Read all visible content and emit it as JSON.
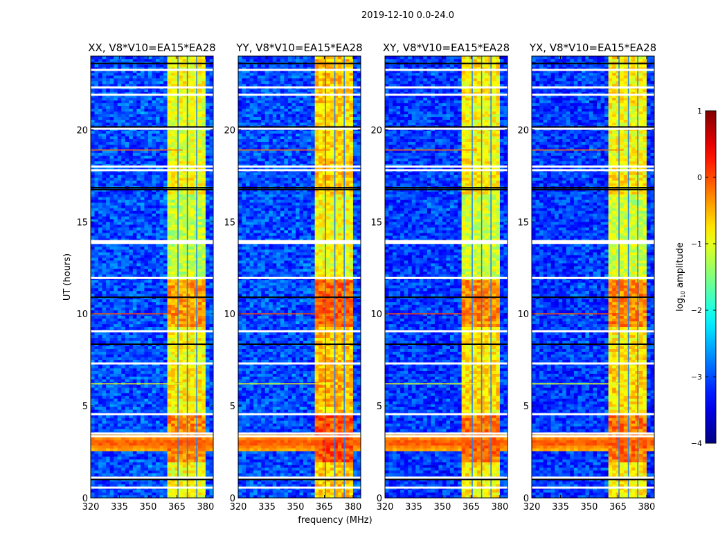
{
  "chart_data": {
    "type": "heatmap",
    "title": "2019-12-10 0.0-24.0",
    "xlabel": "frequency (MHz)",
    "ylabel": "UT (hours)",
    "xlim": [
      320,
      384
    ],
    "ylim": [
      0,
      24
    ],
    "xticks": [
      320,
      335,
      350,
      365,
      380
    ],
    "yticks": [
      0,
      5,
      10,
      15,
      20
    ],
    "colormap": "jet",
    "colorbar": {
      "label_main": "log",
      "label_sub": "10",
      "label_rest": " amplitude",
      "clim": [
        -4,
        1
      ],
      "ticks": [
        1,
        0,
        -1,
        -2,
        -3,
        -4
      ],
      "tick_labels": [
        "1",
        "0",
        "−1",
        "−2",
        "−3",
        "−4"
      ]
    },
    "panels": [
      {
        "title": "XX, V8*V10=EA15*EA28",
        "band_level": -0.9,
        "background_level": -3.0
      },
      {
        "title": "YY, V8*V10=EA15*EA28",
        "band_level": -0.6,
        "background_level": -3.0
      },
      {
        "title": "XY, V8*V10=EA15*EA28",
        "band_level": -0.8,
        "background_level": -3.1
      },
      {
        "title": "YX, V8*V10=EA15*EA28",
        "band_level": -0.8,
        "background_level": -3.1
      }
    ],
    "strong_band_mhz": [
      360.5,
      380
    ],
    "subband_gaps_mhz": [
      365.3,
      370.2,
      375.1
    ],
    "band_time_modulation": [
      {
        "from_h": 2.0,
        "to_h": 4.5,
        "delta": 0.6
      },
      {
        "from_h": 9.3,
        "to_h": 11.8,
        "delta": 0.5
      },
      {
        "from_h": 5.0,
        "to_h": 7.0,
        "delta": 0.1
      },
      {
        "from_h": 18.5,
        "to_h": 21.5,
        "delta": -0.1
      },
      {
        "from_h": 12.0,
        "to_h": 16.5,
        "delta": -0.3
      }
    ],
    "broadband_rfi": {
      "from_h": 2.5,
      "to_h": 3.5,
      "level": 0.0
    },
    "flagged_hours": [
      0.56,
      1.1,
      3.35,
      3.5,
      4.55,
      7.3,
      9.05,
      11.95,
      13.85,
      13.95,
      17.8,
      18.0,
      20.05,
      21.9,
      22.3,
      23.25
    ],
    "dark_hours": [
      1.0,
      8.35,
      10.9,
      16.75,
      16.85,
      20.15,
      23.6
    ],
    "rfi_lines": [
      {
        "hour": 10.0,
        "level": 0.0
      },
      {
        "hour": 18.9,
        "level": -0.2
      },
      {
        "hour": 6.2,
        "level": -1.0
      }
    ]
  }
}
